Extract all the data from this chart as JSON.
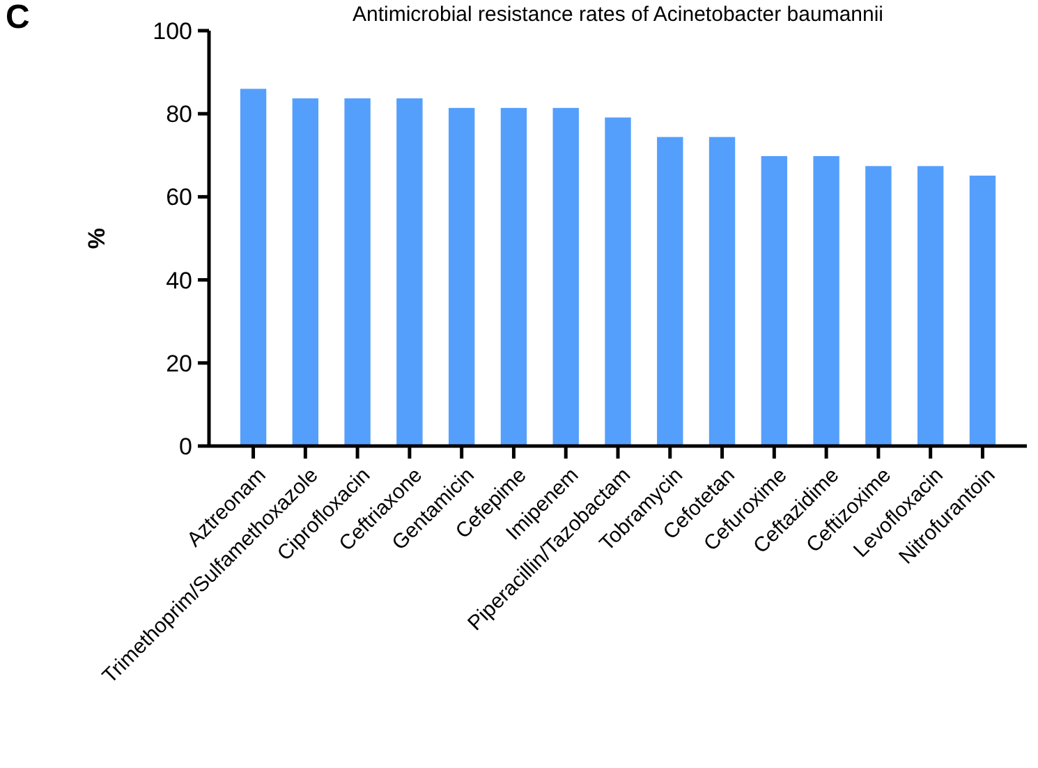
{
  "chart_data": {
    "type": "bar",
    "title": "Antimicrobial resistance rates of Acinetobacter baumannii",
    "ylabel": "%",
    "annotations": [
      "C"
    ],
    "categories": [
      "Aztreonam",
      "Trimethoprim/Sulfamethoxazole",
      "Ciprofloxacin",
      "Ceftriaxone",
      "Gentamicin",
      "Cefepime",
      "Imipenem",
      "Piperacillin/Tazobactam",
      "Tobramycin",
      "Cefotetan",
      "Cefuroxime",
      "Ceftazidime",
      "Ceftizoxime",
      "Levofloxacin",
      "Nitrofurantoin"
    ],
    "values": [
      86.0,
      83.7,
      83.7,
      83.7,
      81.4,
      81.4,
      81.4,
      79.1,
      74.4,
      74.4,
      69.8,
      69.8,
      67.4,
      67.4,
      65.1
    ],
    "color": "#559ffc",
    "ylim": [
      0,
      100
    ],
    "yticks": [
      0,
      20,
      40,
      60,
      80,
      100
    ],
    "grid": false
  }
}
